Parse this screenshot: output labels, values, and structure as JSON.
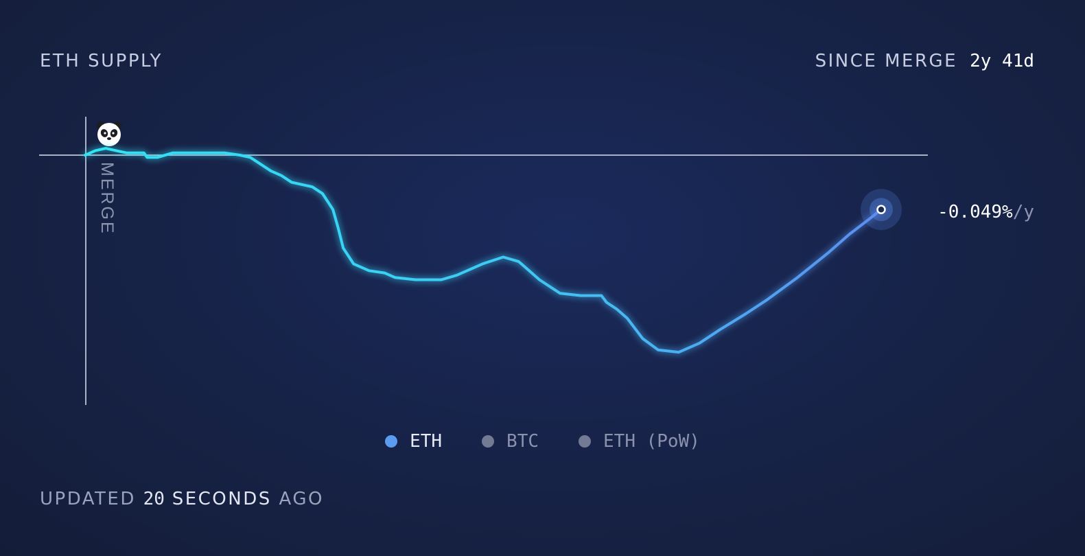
{
  "header": {
    "title": "ETH SUPPLY",
    "since_label": "SINCE MERGE",
    "since_value": "2y 41d"
  },
  "annotation": {
    "merge_label": "MERGE",
    "mascot_icon": "panda-icon"
  },
  "current_rate": {
    "value": "-0.049%",
    "unit": "/y"
  },
  "legend": [
    {
      "label": "ETH",
      "color": "#5b9cf0",
      "active": true
    },
    {
      "label": "BTC",
      "color": "#737a93",
      "active": false
    },
    {
      "label": "ETH (PoW)",
      "color": "#737a93",
      "active": false
    }
  ],
  "footer": {
    "prefix": "UPDATED",
    "count": "20",
    "unit": "SECONDS",
    "suffix": "AGO"
  },
  "colors": {
    "line_start": "#2fe4f5",
    "line_end": "#5b8ef0",
    "baseline": "#aab2c8"
  },
  "chart_data": {
    "type": "line",
    "title": "ETH SUPPLY",
    "xlabel": "",
    "ylabel": "",
    "x_unit": "days since merge",
    "x_range": [
      0,
      771
    ],
    "y_unit": "relative supply change (arbitrary, 0 = merge)",
    "ylim": [
      -100,
      15
    ],
    "grid": false,
    "legend_position": "bottom-center",
    "series": [
      {
        "name": "ETH",
        "points": [
          [
            0,
            0
          ],
          [
            10,
            2
          ],
          [
            20,
            3
          ],
          [
            30,
            2
          ],
          [
            40,
            1
          ],
          [
            50,
            1
          ],
          [
            57,
            1
          ],
          [
            60,
            -1
          ],
          [
            70,
            -1
          ],
          [
            85,
            1
          ],
          [
            100,
            1
          ],
          [
            120,
            1
          ],
          [
            135,
            1
          ],
          [
            150,
            0
          ],
          [
            160,
            -1
          ],
          [
            170,
            -4
          ],
          [
            180,
            -7
          ],
          [
            190,
            -9
          ],
          [
            200,
            -12
          ],
          [
            220,
            -14
          ],
          [
            230,
            -17
          ],
          [
            240,
            -24
          ],
          [
            245,
            -32
          ],
          [
            250,
            -41
          ],
          [
            260,
            -48
          ],
          [
            275,
            -51
          ],
          [
            290,
            -52
          ],
          [
            300,
            -54
          ],
          [
            320,
            -55
          ],
          [
            345,
            -55
          ],
          [
            360,
            -53
          ],
          [
            385,
            -48
          ],
          [
            405,
            -45
          ],
          [
            420,
            -47
          ],
          [
            430,
            -51
          ],
          [
            440,
            -55
          ],
          [
            460,
            -61
          ],
          [
            480,
            -62
          ],
          [
            500,
            -62
          ],
          [
            505,
            -65
          ],
          [
            515,
            -68
          ],
          [
            525,
            -72
          ],
          [
            540,
            -81
          ],
          [
            555,
            -86
          ],
          [
            575,
            -87
          ],
          [
            595,
            -83
          ],
          [
            615,
            -77
          ],
          [
            640,
            -70
          ],
          [
            660,
            -64
          ],
          [
            690,
            -54
          ],
          [
            720,
            -43
          ],
          [
            740,
            -35
          ],
          [
            760,
            -28
          ],
          [
            771,
            -24
          ]
        ]
      }
    ]
  }
}
